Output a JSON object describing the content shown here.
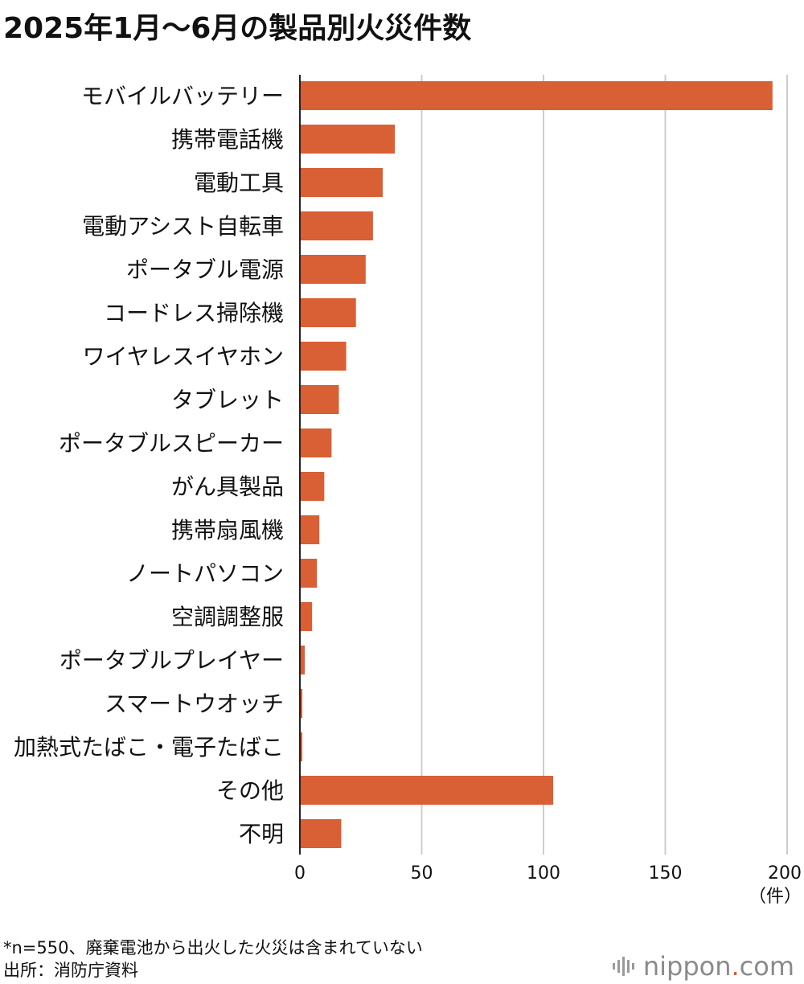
{
  "title": "2025年1月〜6月の製品別火災件数",
  "note": "*n=550、廃棄電池から出火した火災は含まれていない",
  "source": "出所：消防庁資料",
  "logo": {
    "pre": "nippon",
    "dot": ".",
    "post": "com",
    "icon": "nippon-wave-icon"
  },
  "colors": {
    "bar": "#d95f34",
    "grid": "#cccccc",
    "axis": "#222222"
  },
  "chart_data": {
    "type": "bar",
    "orientation": "horizontal",
    "categories": [
      "モバイルバッテリー",
      "携帯電話機",
      "電動工具",
      "電動アシスト自転車",
      "ポータブル電源",
      "コードレス掃除機",
      "ワイヤレスイヤホン",
      "タブレット",
      "ポータブルスピーカー",
      "がん具製品",
      "携帯扇風機",
      "ノートパソコン",
      "空調調整服",
      "ポータブルプレイヤー",
      "スマートウオッチ",
      "加熱式たばこ・電子たばこ",
      "その他",
      "不明"
    ],
    "values": [
      194,
      39,
      34,
      30,
      27,
      23,
      19,
      16,
      13,
      10,
      8,
      7,
      5,
      2,
      1,
      1,
      104,
      17
    ],
    "xlim": [
      0,
      200
    ],
    "xticks": [
      "0",
      "50",
      "100",
      "150",
      "200"
    ],
    "unit_label": "（件）",
    "grid": true
  }
}
